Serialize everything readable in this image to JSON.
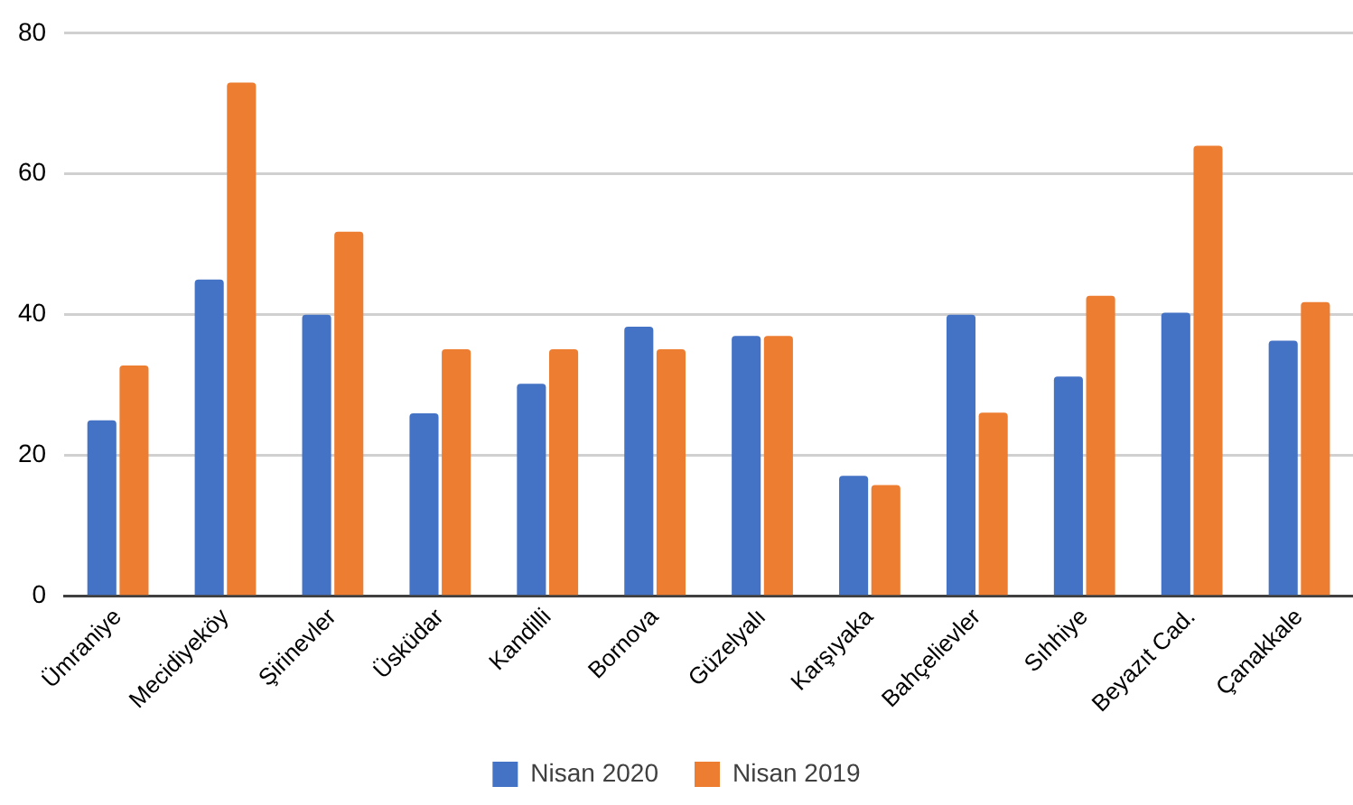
{
  "chart_data": {
    "type": "bar",
    "categories": [
      "Ümraniye",
      "Mecidiyeköy",
      "Şirinevler",
      "Üsküdar",
      "Kandilli",
      "Bornova",
      "Güzelyalı",
      "Karşıyaka",
      "Bahçelievler",
      "Sıhhiye",
      "Beyazıt Cad.",
      "Çanakkale"
    ],
    "series": [
      {
        "name": "Nisan 2020",
        "color": "#4472c4",
        "values": [
          25,
          45,
          40,
          26,
          30.2,
          38.3,
          37,
          17.1,
          40,
          31.2,
          40.3,
          36.3
        ]
      },
      {
        "name": "Nisan 2019",
        "color": "#ed7d31",
        "values": [
          32.8,
          73,
          51.8,
          35.1,
          35.1,
          35.1,
          37,
          15.8,
          26.1,
          42.7,
          64,
          41.8
        ]
      }
    ],
    "ylim": [
      0,
      80
    ],
    "yticks": [
      0,
      20,
      40,
      60,
      80
    ],
    "grid": "y",
    "legend": "bottom"
  }
}
